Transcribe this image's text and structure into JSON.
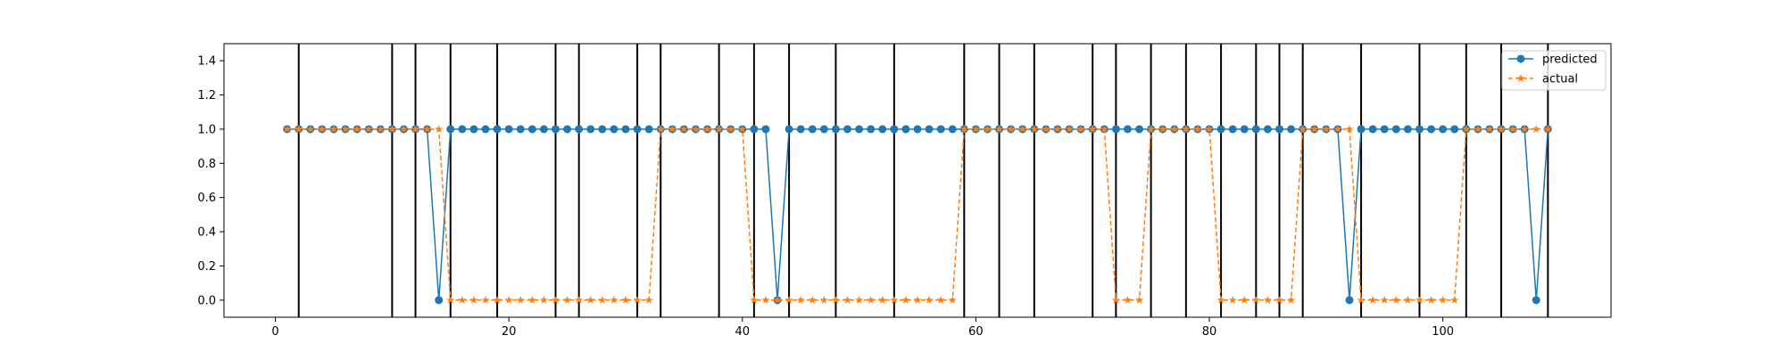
{
  "chart_data": {
    "type": "line",
    "x": [
      1,
      2,
      3,
      4,
      5,
      6,
      7,
      8,
      9,
      10,
      11,
      12,
      13,
      14,
      15,
      16,
      17,
      18,
      19,
      20,
      21,
      22,
      23,
      24,
      25,
      26,
      27,
      28,
      29,
      30,
      31,
      32,
      33,
      34,
      35,
      36,
      37,
      38,
      39,
      40,
      41,
      42,
      43,
      44,
      45,
      46,
      47,
      48,
      49,
      50,
      51,
      52,
      53,
      54,
      55,
      56,
      57,
      58,
      59,
      60,
      61,
      62,
      63,
      64,
      65,
      66,
      67,
      68,
      69,
      70,
      71,
      72,
      73,
      74,
      75,
      76,
      77,
      78,
      79,
      80,
      81,
      82,
      83,
      84,
      85,
      86,
      87,
      88,
      89,
      90,
      91,
      92,
      93,
      94,
      95,
      96,
      97,
      98,
      99,
      100,
      101,
      102,
      103,
      104,
      105,
      106,
      107,
      108,
      109
    ],
    "series": [
      {
        "name": "predicted",
        "color": "#1f77b4",
        "marker": "circle",
        "linestyle": "solid",
        "values": [
          1,
          1,
          1,
          1,
          1,
          1,
          1,
          1,
          1,
          1,
          1,
          1,
          1,
          0,
          1,
          1,
          1,
          1,
          1,
          1,
          1,
          1,
          1,
          1,
          1,
          1,
          1,
          1,
          1,
          1,
          1,
          1,
          1,
          1,
          1,
          1,
          1,
          1,
          1,
          1,
          1,
          1,
          0,
          1,
          1,
          1,
          1,
          1,
          1,
          1,
          1,
          1,
          1,
          1,
          1,
          1,
          1,
          1,
          1,
          1,
          1,
          1,
          1,
          1,
          1,
          1,
          1,
          1,
          1,
          1,
          1,
          1,
          1,
          1,
          1,
          1,
          1,
          1,
          1,
          1,
          1,
          1,
          1,
          1,
          1,
          1,
          1,
          1,
          1,
          1,
          1,
          0,
          1,
          1,
          1,
          1,
          1,
          1,
          1,
          1,
          1,
          1,
          1,
          1,
          1,
          1,
          1,
          0,
          1
        ]
      },
      {
        "name": "actual",
        "color": "#ff7f0e",
        "marker": "star",
        "linestyle": "dashed",
        "values": [
          1,
          1,
          1,
          1,
          1,
          1,
          1,
          1,
          1,
          1,
          1,
          1,
          1,
          1,
          0,
          0,
          0,
          0,
          0,
          0,
          0,
          0,
          0,
          0,
          0,
          0,
          0,
          0,
          0,
          0,
          0,
          0,
          1,
          1,
          1,
          1,
          1,
          1,
          1,
          1,
          0,
          0,
          0,
          0,
          0,
          0,
          0,
          0,
          0,
          0,
          0,
          0,
          0,
          0,
          0,
          0,
          0,
          0,
          1,
          1,
          1,
          1,
          1,
          1,
          1,
          1,
          1,
          1,
          1,
          1,
          1,
          0,
          0,
          0,
          1,
          1,
          1,
          1,
          1,
          1,
          0,
          0,
          0,
          0,
          0,
          0,
          0,
          1,
          1,
          1,
          1,
          1,
          0,
          0,
          0,
          0,
          0,
          0,
          0,
          0,
          0,
          1,
          1,
          1,
          1,
          1,
          1,
          1,
          1
        ]
      }
    ],
    "vlines": [
      2,
      10,
      12,
      15,
      19,
      24,
      26,
      31,
      33,
      38,
      41,
      44,
      48,
      53,
      59,
      62,
      65,
      70,
      72,
      75,
      78,
      81,
      84,
      86,
      88,
      93,
      98,
      102,
      105,
      109
    ],
    "xlim": [
      -4.4,
      114.4
    ],
    "ylim": [
      -0.1,
      1.5
    ],
    "xticks": [
      0,
      20,
      40,
      60,
      80,
      100
    ],
    "yticks": [
      0.0,
      0.2,
      0.4,
      0.6,
      0.8,
      1.0,
      1.2,
      1.4
    ],
    "ytick_labels": [
      "0.0",
      "0.2",
      "0.4",
      "0.6",
      "0.8",
      "1.0",
      "1.2",
      "1.4"
    ],
    "grid": false,
    "legend_position": "top-right",
    "title": "",
    "xlabel": "",
    "ylabel": ""
  }
}
